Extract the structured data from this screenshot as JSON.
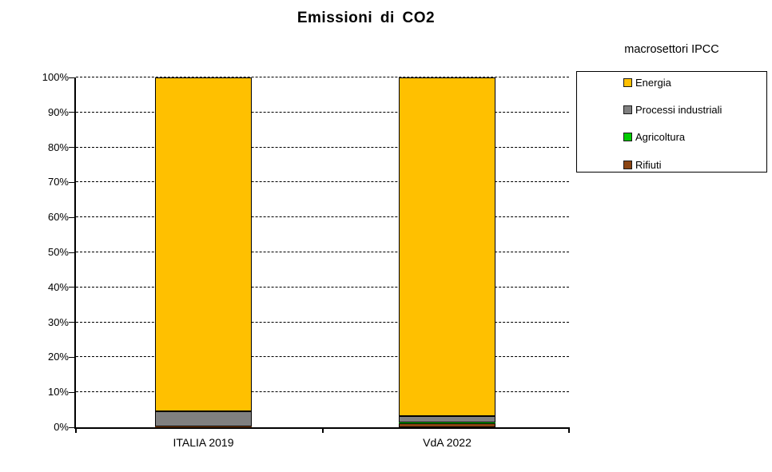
{
  "title": "Emissioni di CO2",
  "legend": {
    "title": "macrosettori IPCC",
    "items": [
      {
        "label": "Energia",
        "color": "#FFC000"
      },
      {
        "label": "Processi industriali",
        "color": "#808080"
      },
      {
        "label": "Agricoltura",
        "color": "#00CC00"
      },
      {
        "label": "Rifiuti",
        "color": "#8B4513"
      }
    ]
  },
  "chart_data": {
    "type": "bar",
    "variant": "stacked-100-percent",
    "title": "Emissioni di CO2",
    "legend_title": "macrosettori IPCC",
    "legend_position": "right",
    "categories": [
      "ITALIA 2019",
      "VdA 2022"
    ],
    "series": [
      {
        "name": "Energia",
        "color": "#FFC000",
        "values": [
          95.5,
          96.9
        ]
      },
      {
        "name": "Processi industriali",
        "color": "#808080",
        "values": [
          4.2,
          1.8
        ]
      },
      {
        "name": "Agricoltura",
        "color": "#00CC00",
        "values": [
          0.1,
          0.1
        ]
      },
      {
        "name": "Rifiuti",
        "color": "#8B4513",
        "values": [
          0.2,
          1.2
        ]
      }
    ],
    "stack_order_bottom_to_top": [
      "Rifiuti",
      "Agricoltura",
      "Processi industriali",
      "Energia"
    ],
    "unit": "%",
    "xlabel": "",
    "ylabel": "",
    "ylim": [
      0,
      100
    ],
    "ytick_labels": [
      "0%",
      "10%",
      "20%",
      "30%",
      "40%",
      "50%",
      "60%",
      "70%",
      "80%",
      "90%",
      "100%"
    ],
    "grid": "horizontal-dashed",
    "axis_color": "#000000",
    "background": "#FFFFFF"
  }
}
